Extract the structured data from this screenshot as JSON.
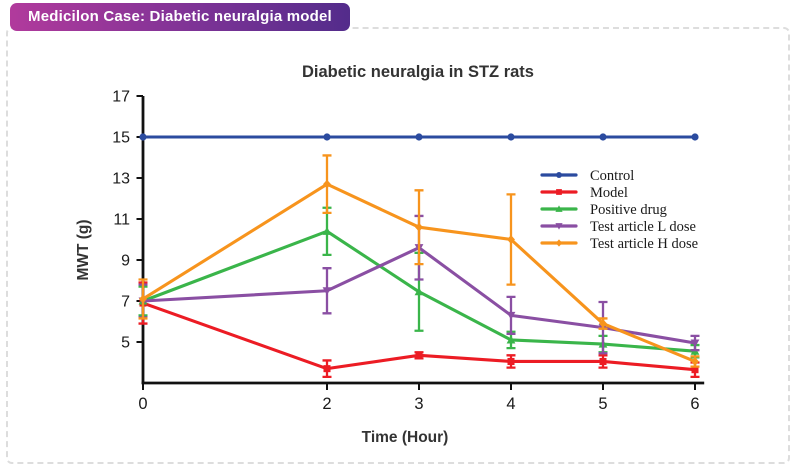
{
  "badge": {
    "label": "Medicilon Case: Diabetic neuralgia model",
    "gradient_left": "#b13a9c",
    "gradient_right": "#532c8b",
    "text_color": "#ffffff"
  },
  "frame": {
    "border_color": "#dddddd",
    "style": "dashed"
  },
  "chart_data": {
    "type": "line",
    "title": "Diabetic neuralgia in STZ rats",
    "xlabel": "Time (Hour)",
    "ylabel": "MWT (g)",
    "x": [
      0,
      2,
      3,
      4,
      5,
      6
    ],
    "x_ticks": [
      0,
      2,
      3,
      4,
      5,
      6
    ],
    "y_ticks": [
      5,
      7,
      9,
      11,
      13,
      15,
      17
    ],
    "xlim": [
      0,
      6.1
    ],
    "ylim": [
      3,
      17
    ],
    "grid": false,
    "legend_position": "inside-right",
    "axis_color": "#111111",
    "series": [
      {
        "name": "Control",
        "color": "#2b4b9f",
        "marker": "circle",
        "values": [
          15,
          15,
          15,
          15,
          15,
          15
        ],
        "errors": [
          0,
          0,
          0,
          0,
          0,
          0
        ]
      },
      {
        "name": "Model",
        "color": "#ec1c24",
        "marker": "square",
        "values": [
          6.9,
          3.7,
          4.35,
          4.05,
          4.05,
          3.65
        ],
        "errors": [
          1.0,
          0.4,
          0.15,
          0.3,
          0.3,
          0.35
        ]
      },
      {
        "name": "Positive drug",
        "color": "#3ab54a",
        "marker": "triangle-up",
        "values": [
          7.0,
          10.4,
          7.45,
          5.1,
          4.9,
          4.55
        ],
        "errors": [
          0.7,
          1.15,
          1.9,
          0.4,
          0.4,
          0.3
        ]
      },
      {
        "name": "Test article L dose",
        "color": "#8a4fa3",
        "marker": "triangle-down",
        "values": [
          7.0,
          7.5,
          9.6,
          6.3,
          5.7,
          4.95
        ],
        "errors": [
          0.8,
          1.1,
          1.55,
          0.9,
          1.25,
          0.35
        ]
      },
      {
        "name": "Test article H dose",
        "color": "#f7941d",
        "marker": "diamond",
        "values": [
          7.1,
          12.7,
          10.6,
          10.0,
          5.9,
          4.05
        ],
        "errors": [
          0.95,
          1.4,
          1.8,
          2.2,
          0.25,
          0.25
        ]
      }
    ]
  }
}
